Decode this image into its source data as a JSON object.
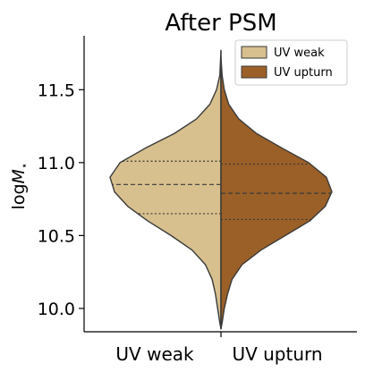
{
  "chart_data": {
    "type": "violin",
    "title": "After PSM",
    "ylabel": "log M⋆",
    "xlabel": "",
    "categories": [
      "UV weak",
      "UV upturn"
    ],
    "ylim": [
      9.84,
      11.87
    ],
    "yticks": [
      10.0,
      10.5,
      11.0,
      11.5
    ],
    "ytick_labels": [
      "10.0",
      "10.5",
      "11.0",
      "11.5"
    ],
    "legend": {
      "placement": "top-right",
      "entries": [
        {
          "label": "UV weak",
          "color": "#d7c08e"
        },
        {
          "label": "UV upturn",
          "color": "#9b6027"
        }
      ]
    },
    "split": true,
    "series": [
      {
        "name": "UV weak",
        "side": "left",
        "color": "#d7c08e",
        "quartiles": [
          10.65,
          10.85,
          11.01
        ],
        "range": [
          9.86,
          11.77
        ],
        "density_profile": [
          [
            9.86,
            0.0
          ],
          [
            9.9,
            0.01
          ],
          [
            10.0,
            0.03
          ],
          [
            10.1,
            0.05
          ],
          [
            10.2,
            0.08
          ],
          [
            10.3,
            0.14
          ],
          [
            10.4,
            0.26
          ],
          [
            10.5,
            0.45
          ],
          [
            10.6,
            0.66
          ],
          [
            10.7,
            0.84
          ],
          [
            10.8,
            0.96
          ],
          [
            10.9,
            1.0
          ],
          [
            11.0,
            0.91
          ],
          [
            11.1,
            0.68
          ],
          [
            11.2,
            0.42
          ],
          [
            11.3,
            0.22
          ],
          [
            11.4,
            0.1
          ],
          [
            11.5,
            0.04
          ],
          [
            11.6,
            0.01
          ],
          [
            11.77,
            0.0
          ]
        ]
      },
      {
        "name": "UV upturn",
        "side": "right",
        "color": "#9b6027",
        "quartiles": [
          10.61,
          10.79,
          10.99
        ],
        "range": [
          9.86,
          11.72
        ],
        "density_profile": [
          [
            9.86,
            0.0
          ],
          [
            9.9,
            0.01
          ],
          [
            10.0,
            0.03
          ],
          [
            10.1,
            0.06
          ],
          [
            10.2,
            0.1
          ],
          [
            10.3,
            0.19
          ],
          [
            10.4,
            0.36
          ],
          [
            10.5,
            0.58
          ],
          [
            10.6,
            0.8
          ],
          [
            10.7,
            0.94
          ],
          [
            10.8,
            1.0
          ],
          [
            10.9,
            0.95
          ],
          [
            11.0,
            0.79
          ],
          [
            11.1,
            0.55
          ],
          [
            11.2,
            0.32
          ],
          [
            11.3,
            0.16
          ],
          [
            11.4,
            0.07
          ],
          [
            11.5,
            0.03
          ],
          [
            11.6,
            0.01
          ],
          [
            11.72,
            0.0
          ]
        ]
      }
    ]
  }
}
